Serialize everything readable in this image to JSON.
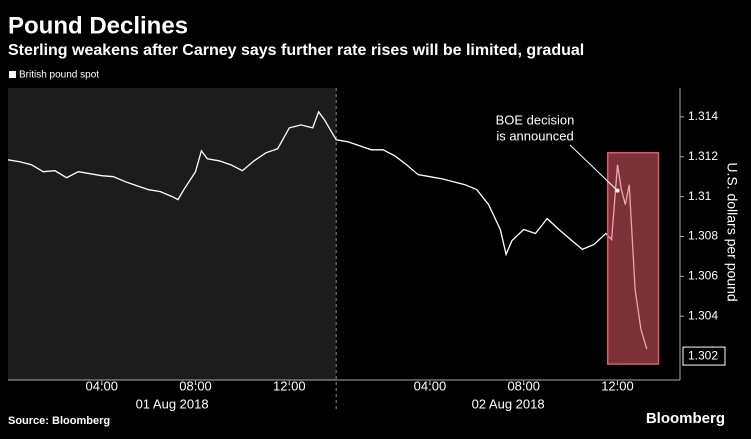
{
  "chart_data": {
    "type": "line",
    "title": "Pound Declines",
    "subtitle": "Sterling weakens after Carney says further rate rises will be limited, gradual",
    "y_label": "U.S. dollars per pound",
    "source": "Source: Bloomberg",
    "brand": "Bloomberg",
    "x": [
      "2018-08-01T00:00",
      "2018-08-01T00:30",
      "2018-08-01T01:00",
      "2018-08-01T01:30",
      "2018-08-01T02:00",
      "2018-08-01T02:30",
      "2018-08-01T03:00",
      "2018-08-01T03:30",
      "2018-08-01T04:00",
      "2018-08-01T04:30",
      "2018-08-01T05:00",
      "2018-08-01T05:30",
      "2018-08-01T06:00",
      "2018-08-01T06:30",
      "2018-08-01T07:00",
      "2018-08-01T07:15",
      "2018-08-01T07:30",
      "2018-08-01T08:00",
      "2018-08-01T08:15",
      "2018-08-01T08:30",
      "2018-08-01T09:00",
      "2018-08-01T09:30",
      "2018-08-01T10:00",
      "2018-08-01T10:30",
      "2018-08-01T11:00",
      "2018-08-01T11:30",
      "2018-08-01T12:00",
      "2018-08-01T12:30",
      "2018-08-01T13:00",
      "2018-08-01T13:15",
      "2018-08-01T13:30",
      "2018-08-01T14:00",
      "2018-08-02T00:00",
      "2018-08-02T00:30",
      "2018-08-02T01:00",
      "2018-08-02T01:30",
      "2018-08-02T02:00",
      "2018-08-02T02:30",
      "2018-08-02T03:00",
      "2018-08-02T03:30",
      "2018-08-02T04:00",
      "2018-08-02T04:30",
      "2018-08-02T05:00",
      "2018-08-02T05:30",
      "2018-08-02T06:00",
      "2018-08-02T06:30",
      "2018-08-02T07:00",
      "2018-08-02T07:15",
      "2018-08-02T07:30",
      "2018-08-02T08:00",
      "2018-08-02T08:30",
      "2018-08-02T09:00",
      "2018-08-02T09:30",
      "2018-08-02T10:00",
      "2018-08-02T10:30",
      "2018-08-02T11:00",
      "2018-08-02T11:30",
      "2018-08-02T11:45",
      "2018-08-02T12:00",
      "2018-08-02T12:10",
      "2018-08-02T12:20",
      "2018-08-02T12:30",
      "2018-08-02T12:45",
      "2018-08-02T13:00",
      "2018-08-02T13:15"
    ],
    "series": [
      {
        "name": "British pound spot",
        "color": "#ffffff",
        "values": [
          1.31185,
          1.31175,
          1.3116,
          1.31125,
          1.3113,
          1.31095,
          1.31125,
          1.31115,
          1.31105,
          1.311,
          1.31075,
          1.31055,
          1.31035,
          1.31025,
          1.31,
          1.30985,
          1.31035,
          1.31125,
          1.3123,
          1.3119,
          1.3118,
          1.3116,
          1.3113,
          1.3118,
          1.3122,
          1.3124,
          1.31345,
          1.3136,
          1.31345,
          1.31425,
          1.31385,
          1.31285,
          1.31285,
          1.31275,
          1.31255,
          1.31235,
          1.31235,
          1.31205,
          1.3116,
          1.3111,
          1.311,
          1.3109,
          1.31075,
          1.3106,
          1.31035,
          1.3096,
          1.30835,
          1.3071,
          1.3078,
          1.30835,
          1.30815,
          1.3089,
          1.30835,
          1.30785,
          1.30735,
          1.3076,
          1.30815,
          1.30785,
          1.3116,
          1.31035,
          1.3096,
          1.3106,
          1.30535,
          1.30335,
          1.30235
        ]
      }
    ],
    "x_sessions": [
      {
        "label": "01 Aug 2018",
        "range": [
          "2018-08-01T00:00",
          "2018-08-01T14:00"
        ]
      },
      {
        "label": "02 Aug 2018",
        "range": [
          "2018-08-02T00:00",
          "2018-08-02T14:40"
        ]
      }
    ],
    "xticks": [
      {
        "value": "2018-08-01T04:00",
        "label": "04:00"
      },
      {
        "value": "2018-08-01T08:00",
        "label": "08:00"
      },
      {
        "value": "2018-08-01T12:00",
        "label": "12:00"
      },
      {
        "value": "2018-08-02T04:00",
        "label": "04:00"
      },
      {
        "value": "2018-08-02T08:00",
        "label": "08:00"
      },
      {
        "value": "2018-08-02T12:00",
        "label": "12:00"
      }
    ],
    "ylim": [
      1.3008,
      1.31545
    ],
    "yticks": [
      1.304,
      1.306,
      1.308,
      1.31,
      1.312,
      1.314
    ],
    "last_value": 1.302,
    "highlight": {
      "x": [
        "2018-08-02T11:35",
        "2018-08-02T13:45"
      ],
      "y": [
        1.3016,
        1.3122
      ],
      "color": "#e05a66"
    },
    "annotation": {
      "text": [
        "BOE decision",
        "is announced"
      ],
      "x": "2018-08-02T12:00",
      "y": 1.3103
    },
    "grid": false
  }
}
